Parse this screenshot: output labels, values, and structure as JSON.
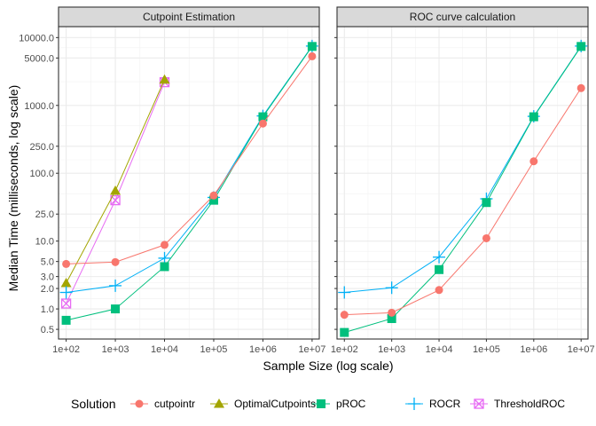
{
  "chart_data": {
    "type": "line",
    "x_scale": "log",
    "y_scale": "log",
    "xlabel": "Sample Size (log scale)",
    "ylabel": "Median Time (milliseconds, log scale)",
    "x_ticks": [
      {
        "value": 100,
        "label": "1e+02"
      },
      {
        "value": 1000,
        "label": "1e+03"
      },
      {
        "value": 10000,
        "label": "1e+04"
      },
      {
        "value": 100000,
        "label": "1e+05"
      },
      {
        "value": 1000000,
        "label": "1e+06"
      },
      {
        "value": 10000000,
        "label": "1e+07"
      }
    ],
    "y_ticks": [
      {
        "value": 0.5,
        "label": "0.5"
      },
      {
        "value": 1,
        "label": "1.0"
      },
      {
        "value": 2,
        "label": "2.0"
      },
      {
        "value": 3,
        "label": "3.0"
      },
      {
        "value": 5,
        "label": "5.0"
      },
      {
        "value": 10,
        "label": "10.0"
      },
      {
        "value": 25,
        "label": "25.0"
      },
      {
        "value": 100,
        "label": "100.0"
      },
      {
        "value": 250,
        "label": "250.0"
      },
      {
        "value": 1000,
        "label": "1000.0"
      },
      {
        "value": 5000,
        "label": "5000.0"
      },
      {
        "value": 10000,
        "label": "10000.0"
      }
    ],
    "xlim": [
      70,
      14000000
    ],
    "ylim": [
      0.36,
      14500
    ],
    "legend": {
      "title": "Solution",
      "position": "bottom",
      "entries": [
        {
          "name": "cutpointr",
          "color": "#F8766D",
          "shape": "circle"
        },
        {
          "name": "OptimalCutpoints",
          "color": "#A3A500",
          "shape": "triangle"
        },
        {
          "name": "pROC",
          "color": "#00BF7D",
          "shape": "square"
        },
        {
          "name": "ROCR",
          "color": "#00B0F6",
          "shape": "plus"
        },
        {
          "name": "ThresholdROC",
          "color": "#E76BF3",
          "shape": "boxcross"
        }
      ]
    },
    "panels": [
      {
        "title": "Cutpoint Estimation",
        "series": [
          {
            "name": "ThresholdROC",
            "x": [
              100,
              1000,
              10000
            ],
            "y": [
              1.2,
              40,
              2200
            ]
          },
          {
            "name": "OptimalCutpoints",
            "x": [
              100,
              1000,
              10000
            ],
            "y": [
              2.4,
              55,
              2400
            ]
          },
          {
            "name": "ROCR",
            "x": [
              100,
              1000,
              10000,
              100000,
              1000000,
              10000000
            ],
            "y": [
              1.75,
              2.2,
              5.6,
              44,
              700,
              7500
            ]
          },
          {
            "name": "pROC",
            "x": [
              100,
              1000,
              10000,
              100000,
              1000000,
              10000000
            ],
            "y": [
              0.68,
              1.0,
              4.2,
              40,
              680,
              7400
            ]
          },
          {
            "name": "cutpointr",
            "x": [
              100,
              1000,
              10000,
              100000,
              1000000,
              10000000
            ],
            "y": [
              4.6,
              4.9,
              8.8,
              47,
              540,
              5300
            ]
          }
        ]
      },
      {
        "title": "ROC curve calculation",
        "series": [
          {
            "name": "ROCR",
            "x": [
              100,
              1000,
              10000,
              100000,
              1000000,
              10000000
            ],
            "y": [
              1.75,
              2.05,
              5.8,
              42,
              690,
              7500
            ]
          },
          {
            "name": "pROC",
            "x": [
              100,
              1000,
              10000,
              100000,
              1000000,
              10000000
            ],
            "y": [
              0.45,
              0.72,
              3.8,
              37,
              680,
              7400
            ]
          },
          {
            "name": "cutpointr",
            "x": [
              100,
              1000,
              10000,
              100000,
              1000000,
              10000000
            ],
            "y": [
              0.82,
              0.88,
              1.9,
              11,
              150,
              1800
            ]
          }
        ]
      }
    ]
  }
}
